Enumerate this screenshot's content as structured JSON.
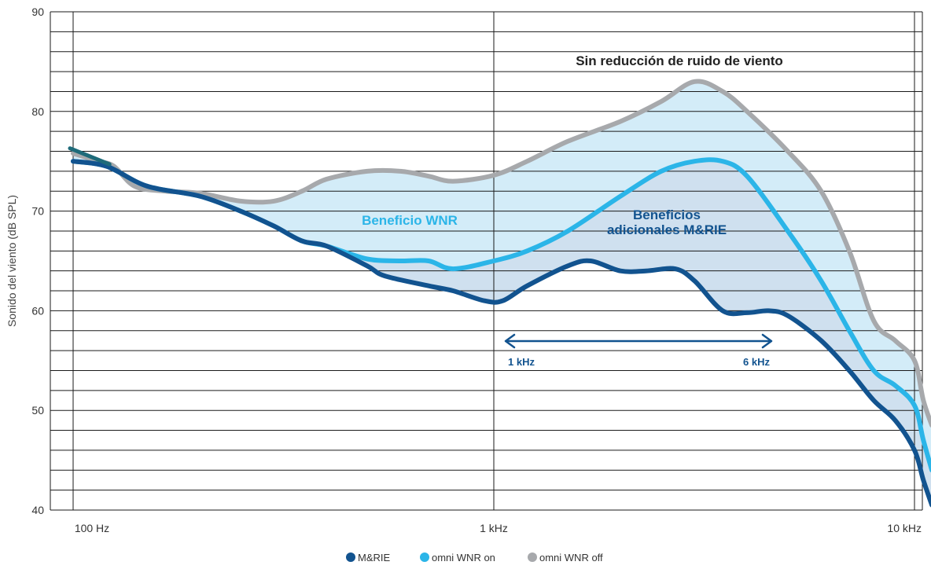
{
  "chart_data": {
    "type": "line",
    "title": "Sin reducción de ruido de viento",
    "xlabel": "",
    "ylabel": "Sonido del viento (dB SPL)",
    "xscale": "log",
    "xlim": [
      94,
      10000
    ],
    "ylim": [
      40,
      90
    ],
    "xticks": [
      {
        "value": 100,
        "label": "100 Hz"
      },
      {
        "value": 1000,
        "label": "1 kHz"
      },
      {
        "value": 10000,
        "label": "10 kHz"
      }
    ],
    "yticks": [
      {
        "value": 40,
        "label": "40"
      },
      {
        "value": 50,
        "label": "50"
      },
      {
        "value": 60,
        "label": "60"
      },
      {
        "value": 70,
        "label": "70"
      },
      {
        "value": 80,
        "label": "80"
      },
      {
        "value": 90,
        "label": "90"
      }
    ],
    "minor_grid_step": 2,
    "series": [
      {
        "name": "omni WNR off",
        "color": "#a7a9ac",
        "points": [
          [
            100,
            75.8
          ],
          [
            115,
            75.0
          ],
          [
            125,
            74.5
          ],
          [
            140,
            72.5
          ],
          [
            165,
            72.0
          ],
          [
            200,
            71.8
          ],
          [
            250,
            71.0
          ],
          [
            300,
            71.0
          ],
          [
            350,
            72.0
          ],
          [
            400,
            73.2
          ],
          [
            500,
            74.0
          ],
          [
            600,
            74.0
          ],
          [
            700,
            73.5
          ],
          [
            800,
            73.0
          ],
          [
            1000,
            73.6
          ],
          [
            1200,
            75.0
          ],
          [
            1500,
            77.0
          ],
          [
            2000,
            79.0
          ],
          [
            2500,
            81.0
          ],
          [
            3000,
            83.0
          ],
          [
            3500,
            82.0
          ],
          [
            4000,
            80.0
          ],
          [
            5000,
            76.0
          ],
          [
            6000,
            72.0
          ],
          [
            7000,
            66.0
          ],
          [
            8000,
            59.0
          ],
          [
            9000,
            57.0
          ],
          [
            10000,
            55.0
          ],
          [
            10500,
            51.0
          ],
          [
            11000,
            48.5
          ]
        ]
      },
      {
        "name": "omni WNR on",
        "color": "#2bb5e8",
        "points": [
          [
            100,
            75.0
          ],
          [
            120,
            74.5
          ],
          [
            150,
            72.5
          ],
          [
            200,
            71.5
          ],
          [
            250,
            70.0
          ],
          [
            300,
            68.5
          ],
          [
            350,
            67.0
          ],
          [
            400,
            66.5
          ],
          [
            500,
            65.2
          ],
          [
            600,
            65.0
          ],
          [
            700,
            65.0
          ],
          [
            800,
            64.2
          ],
          [
            1000,
            65.0
          ],
          [
            1200,
            66.0
          ],
          [
            1500,
            68.0
          ],
          [
            2000,
            71.5
          ],
          [
            2500,
            74.0
          ],
          [
            3000,
            75.0
          ],
          [
            3500,
            75.0
          ],
          [
            4000,
            73.5
          ],
          [
            5000,
            68.0
          ],
          [
            6000,
            63.0
          ],
          [
            7000,
            58.0
          ],
          [
            8000,
            54.0
          ],
          [
            9000,
            52.5
          ],
          [
            10000,
            50.5
          ],
          [
            10500,
            47.0
          ],
          [
            11000,
            44.0
          ]
        ]
      },
      {
        "name": "M&RIE",
        "color": "#12538f",
        "points": [
          [
            100,
            75.0
          ],
          [
            120,
            74.5
          ],
          [
            150,
            72.5
          ],
          [
            200,
            71.5
          ],
          [
            250,
            70.0
          ],
          [
            300,
            68.5
          ],
          [
            350,
            67.0
          ],
          [
            400,
            66.5
          ],
          [
            500,
            64.5
          ],
          [
            550,
            63.5
          ],
          [
            700,
            62.5
          ],
          [
            800,
            62.0
          ],
          [
            950,
            61.0
          ],
          [
            1050,
            61.0
          ],
          [
            1200,
            62.5
          ],
          [
            1500,
            64.5
          ],
          [
            1700,
            65.0
          ],
          [
            2000,
            64.0
          ],
          [
            2300,
            64.0
          ],
          [
            2700,
            64.2
          ],
          [
            3000,
            63.0
          ],
          [
            3500,
            60.0
          ],
          [
            4000,
            59.8
          ],
          [
            4500,
            60.0
          ],
          [
            5000,
            59.5
          ],
          [
            6000,
            57.0
          ],
          [
            7000,
            54.0
          ],
          [
            8000,
            51.0
          ],
          [
            9000,
            49.0
          ],
          [
            10000,
            46.0
          ],
          [
            10500,
            43.0
          ],
          [
            11000,
            40.5
          ]
        ]
      }
    ],
    "annotations": [
      {
        "text": "Sin reducción de ruido de viento",
        "color": "#222222"
      },
      {
        "text": "Beneficio WNR",
        "color": "#2bb5e8"
      },
      {
        "text": "Beneficios",
        "color": "#12538f"
      },
      {
        "text": "adicionales M&RIE",
        "color": "#12538f"
      },
      {
        "text": "1 kHz",
        "color": "#12538f"
      },
      {
        "text": "6 kHz",
        "color": "#12538f"
      }
    ],
    "fill_colors": {
      "wnr_benefit": "#d3ecf8",
      "mrie_benefit": "#cfe0ef"
    },
    "legend": {
      "position": "bottom-center",
      "items": [
        {
          "label": "M&RIE",
          "color": "#12538f"
        },
        {
          "label": "omni WNR on",
          "color": "#2bb5e8"
        },
        {
          "label": "omni WNR off",
          "color": "#a7a9ac"
        }
      ]
    }
  }
}
